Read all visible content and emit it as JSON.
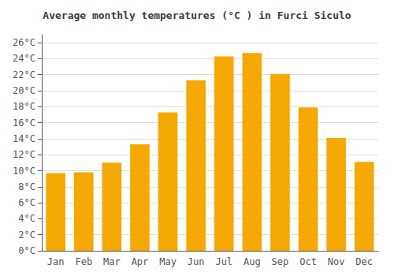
{
  "chart_data": {
    "type": "bar",
    "title": "Average monthly temperatures (°C ) in Furci Siculo",
    "categories": [
      "Jan",
      "Feb",
      "Mar",
      "Apr",
      "May",
      "Jun",
      "Jul",
      "Aug",
      "Sep",
      "Oct",
      "Nov",
      "Dec"
    ],
    "values": [
      9.7,
      9.8,
      11.0,
      13.3,
      17.3,
      21.3,
      24.3,
      24.7,
      22.1,
      17.9,
      14.1,
      11.1
    ],
    "color": "#F5A800",
    "ylim": [
      0,
      27
    ],
    "yticks": [
      {
        "value": 0,
        "label": "0°C"
      },
      {
        "value": 2,
        "label": "2°C"
      },
      {
        "value": 4,
        "label": "4°C"
      },
      {
        "value": 6,
        "label": "6°C"
      },
      {
        "value": 8,
        "label": "8°C"
      },
      {
        "value": 10,
        "label": "10°C"
      },
      {
        "value": 12,
        "label": "12°C"
      },
      {
        "value": 14,
        "label": "14°C"
      },
      {
        "value": 16,
        "label": "16°C"
      },
      {
        "value": 18,
        "label": "18°C"
      },
      {
        "value": 20,
        "label": "20°C"
      },
      {
        "value": 22,
        "label": "22°C"
      },
      {
        "value": 24,
        "label": "24°C"
      },
      {
        "value": 26,
        "label": "26°C"
      }
    ],
    "grid": true
  }
}
